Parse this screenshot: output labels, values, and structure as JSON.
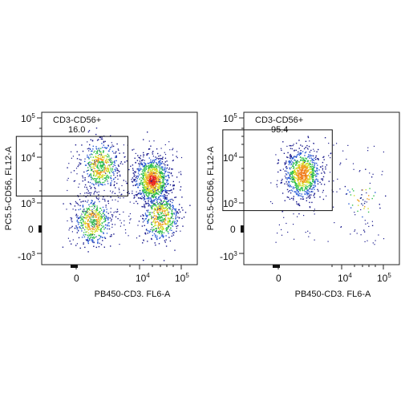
{
  "chart_data": [
    {
      "type": "scatter",
      "title": "",
      "xlabel": "PB450-CD3. FL6-A",
      "ylabel": "PC5.5-CD56, FL12-A",
      "x_scale": "logicle",
      "y_scale": "logicle",
      "x_ticks": [
        {
          "value": 0,
          "base": "0",
          "exp": ""
        },
        {
          "value": 10000,
          "base": "10",
          "exp": "4"
        },
        {
          "value": 100000,
          "base": "10",
          "exp": "5"
        }
      ],
      "y_ticks": [
        {
          "value": 100000,
          "base": "10",
          "exp": "5"
        },
        {
          "value": 10000,
          "base": "10",
          "exp": "4"
        },
        {
          "value": 1000,
          "base": "10",
          "exp": "3"
        },
        {
          "value": 0,
          "base": "0",
          "exp": ""
        },
        {
          "value": -1000,
          "base": "-10",
          "exp": "3"
        }
      ],
      "gate": {
        "name": "CD3-CD56+",
        "percent": "16.0",
        "x_range": [
          -800,
          3500
        ],
        "y_range": [
          700,
          30000
        ]
      },
      "populations": [
        {
          "name": "",
          "center_x": 15000,
          "center_y": 2000,
          "share": 0.4,
          "peak_color": "#e8241c"
        },
        {
          "name": "",
          "center_x": 600,
          "center_y": 5000,
          "share": 0.2,
          "peak_color": "#2ec24a"
        },
        {
          "name": "",
          "center_x": 350,
          "center_y": 100,
          "share": 0.2,
          "peak_color": "#33b34f"
        },
        {
          "name": "",
          "center_x": 25000,
          "center_y": 150,
          "share": 0.2,
          "peak_color": "#2fbf4c"
        }
      ]
    },
    {
      "type": "scatter",
      "title": "",
      "xlabel": "PB450-CD3. FL6-A",
      "ylabel": "PC5.5-CD56, FL12-A",
      "x_scale": "logicle",
      "y_scale": "logicle",
      "x_ticks": [
        {
          "value": 0,
          "base": "0",
          "exp": ""
        },
        {
          "value": 10000,
          "base": "10",
          "exp": "4"
        },
        {
          "value": 100000,
          "base": "10",
          "exp": "5"
        }
      ],
      "y_ticks": [
        {
          "value": 100000,
          "base": "10",
          "exp": "5"
        },
        {
          "value": 10000,
          "base": "10",
          "exp": "4"
        },
        {
          "value": 1000,
          "base": "10",
          "exp": "3"
        },
        {
          "value": 0,
          "base": "0",
          "exp": ""
        },
        {
          "value": -1000,
          "base": "-10",
          "exp": "3"
        }
      ],
      "gate": {
        "name": "CD3-CD56+",
        "percent": "95.4",
        "x_range": [
          -600,
          4000
        ],
        "y_range": [
          250,
          45000
        ]
      },
      "populations": [
        {
          "name": "",
          "center_x": 600,
          "center_y": 3000,
          "share": 0.95,
          "peak_color": "#f07a18"
        },
        {
          "name": "",
          "center_x": 25000,
          "center_y": 600,
          "share": 0.05,
          "peak_color": "#1a2a8c"
        }
      ]
    }
  ],
  "colors": {
    "density_scale": [
      "#1a1a8c",
      "#2a5cd6",
      "#2fbf4c",
      "#cfe02a",
      "#f0a020",
      "#e8241c"
    ],
    "axis": "#222222",
    "gate": "#111111"
  }
}
